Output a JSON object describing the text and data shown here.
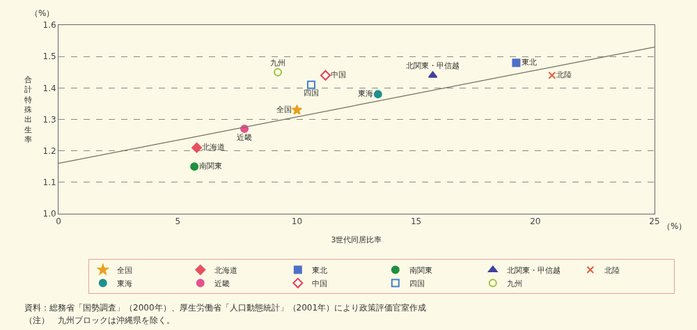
{
  "chart_data": {
    "type": "scatter",
    "xlabel": "3世代同居比率",
    "ylabel": "合計特殊出生率",
    "xlim": [
      0,
      25
    ],
    "xticks": [
      0,
      5,
      10,
      15,
      20,
      25
    ],
    "ylim": [
      1.0,
      1.6
    ],
    "yticks": [
      {
        "value": 1.0,
        "label": "1.0"
      },
      1.1,
      1.2,
      1.3,
      1.4,
      1.5,
      1.6
    ],
    "grid": "y",
    "legend": "bottom",
    "series": [
      {
        "name": "全国",
        "color": "#e8a020",
        "marker": "star",
        "x": [
          10.0
        ],
        "values": [
          1.33
        ]
      },
      {
        "name": "北海道",
        "color": "#e85060",
        "marker": "diamond",
        "x": [
          5.8
        ],
        "values": [
          1.21
        ]
      },
      {
        "name": "東北",
        "color": "#5070c8",
        "marker": "square",
        "x": [
          19.2
        ],
        "values": [
          1.48
        ]
      },
      {
        "name": "南関東",
        "color": "#209040",
        "marker": "circle",
        "x": [
          5.7
        ],
        "values": [
          1.15
        ]
      },
      {
        "name": "北関東・甲信越",
        "color": "#4040a0",
        "marker": "triangle",
        "x": [
          15.7
        ],
        "values": [
          1.44
        ]
      },
      {
        "name": "北陸",
        "color": "#e06040",
        "marker": "cross",
        "x": [
          20.7
        ],
        "values": [
          1.44
        ]
      },
      {
        "name": "東海",
        "color": "#209090",
        "marker": "circle",
        "x": [
          13.4
        ],
        "values": [
          1.38
        ]
      },
      {
        "name": "近畿",
        "color": "#e8508c",
        "marker": "circle",
        "x": [
          7.8
        ],
        "values": [
          1.27
        ]
      },
      {
        "name": "中国",
        "color": "#e04060",
        "marker": "diamond",
        "x": [
          11.2
        ],
        "values": [
          1.44
        ]
      },
      {
        "name": "四国",
        "color": "#4080d0",
        "marker": "square",
        "x": [
          10.6
        ],
        "values": [
          1.41
        ]
      },
      {
        "name": "九州",
        "color": "#a0c040",
        "marker": "circle",
        "x": [
          9.2
        ],
        "values": [
          1.45
        ]
      },
      {
        "type": "line",
        "color": "#707060",
        "marker": "none",
        "x": [
          0,
          25
        ],
        "values": [
          1.16,
          1.53
        ]
      }
    ],
    "annotations": [
      "（%）",
      "（%）",
      "資料：総務省「国勢調査」（2000年）、厚生労働省「人口動態統計」（2001年）により政策評価官室作成",
      "（注）　九州ブロックは沖縄県を除く。"
    ]
  }
}
